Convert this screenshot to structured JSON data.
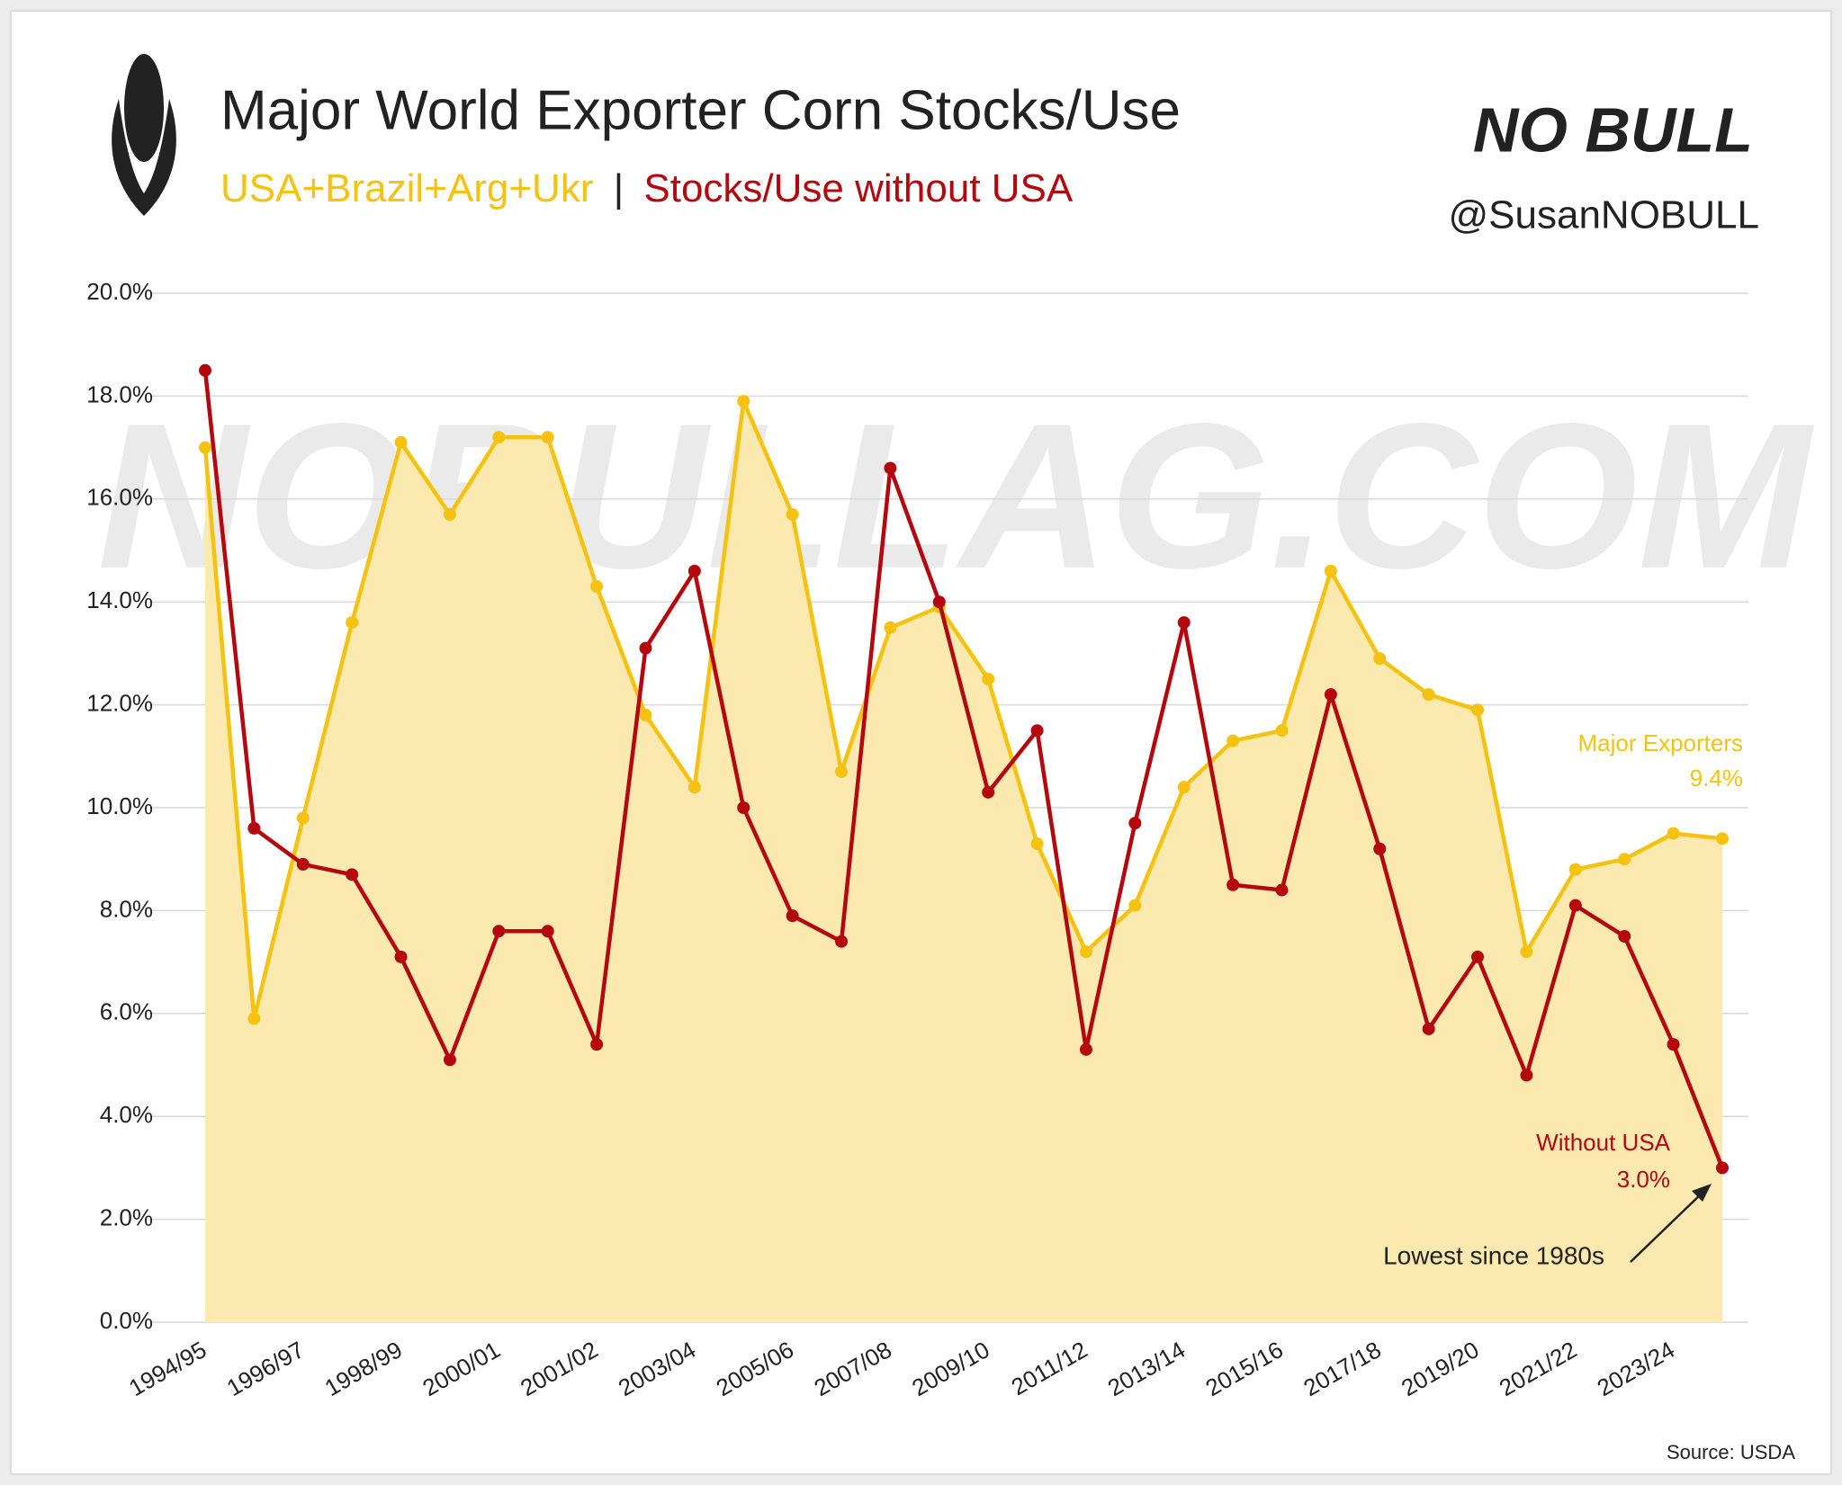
{
  "chart_data": {
    "type": "line",
    "title": "Major World Exporter Corn Stocks/Use",
    "subtitle": {
      "part1": "USA+Brazil+Arg+Ukr",
      "separator": "|",
      "part2": "Stocks/Use without USA"
    },
    "logo": "NO BULL",
    "handle": "@SusanNOBULL",
    "watermark": "NOBULLAG.COM",
    "source": "Source: USDA",
    "categories": [
      "1994/95",
      null,
      "1996/97",
      null,
      "1998/99",
      null,
      "2000/01",
      null,
      "2001/02",
      null,
      "2003/04",
      null,
      "2005/06",
      null,
      "2007/08",
      null,
      "2009/10",
      null,
      "2011/12",
      null,
      "2013/14",
      null,
      "2015/16",
      null,
      "2017/18",
      null,
      "2019/20",
      null,
      "2021/22",
      null,
      "2023/24",
      null
    ],
    "series": [
      {
        "name": "Major Exporters",
        "color": "#f5c20f",
        "area_color": "#fbe9b0",
        "values": [
          17.0,
          5.9,
          9.8,
          13.6,
          17.1,
          15.7,
          17.2,
          17.2,
          14.3,
          11.8,
          10.4,
          17.9,
          15.7,
          10.7,
          13.5,
          13.9,
          12.5,
          9.3,
          7.2,
          8.1,
          10.4,
          11.3,
          11.5,
          14.6,
          12.9,
          12.2,
          11.9,
          7.2,
          8.8,
          9.0,
          9.5,
          9.4
        ]
      },
      {
        "name": "Without USA",
        "color": "#b5080e",
        "values": [
          18.5,
          9.6,
          8.9,
          8.7,
          7.1,
          5.1,
          7.6,
          7.6,
          5.4,
          13.1,
          14.6,
          10.0,
          7.9,
          7.4,
          16.6,
          14.0,
          10.3,
          11.5,
          5.3,
          9.7,
          13.6,
          8.5,
          8.4,
          12.2,
          9.2,
          5.7,
          7.1,
          4.8,
          8.1,
          7.5,
          5.4,
          3.0
        ]
      }
    ],
    "annotations": {
      "exporters_value": "9.4%",
      "without_value": "3.0%",
      "note": "Lowest since 1980s"
    },
    "ylim": [
      0,
      20
    ],
    "yticks": [
      {
        "value": 0,
        "label": "0.0%"
      },
      {
        "value": 2,
        "label": "2.0%"
      },
      {
        "value": 4,
        "label": "4.0%"
      },
      {
        "value": 6,
        "label": "6.0%"
      },
      {
        "value": 8,
        "label": "8.0%"
      },
      {
        "value": 10,
        "label": "10.0%"
      },
      {
        "value": 12,
        "label": "12.0%"
      },
      {
        "value": 14,
        "label": "14.0%"
      },
      {
        "value": 16,
        "label": "16.0%"
      },
      {
        "value": 18,
        "label": "18.0%"
      },
      {
        "value": 20,
        "label": "20.0%"
      }
    ],
    "grid": true
  }
}
